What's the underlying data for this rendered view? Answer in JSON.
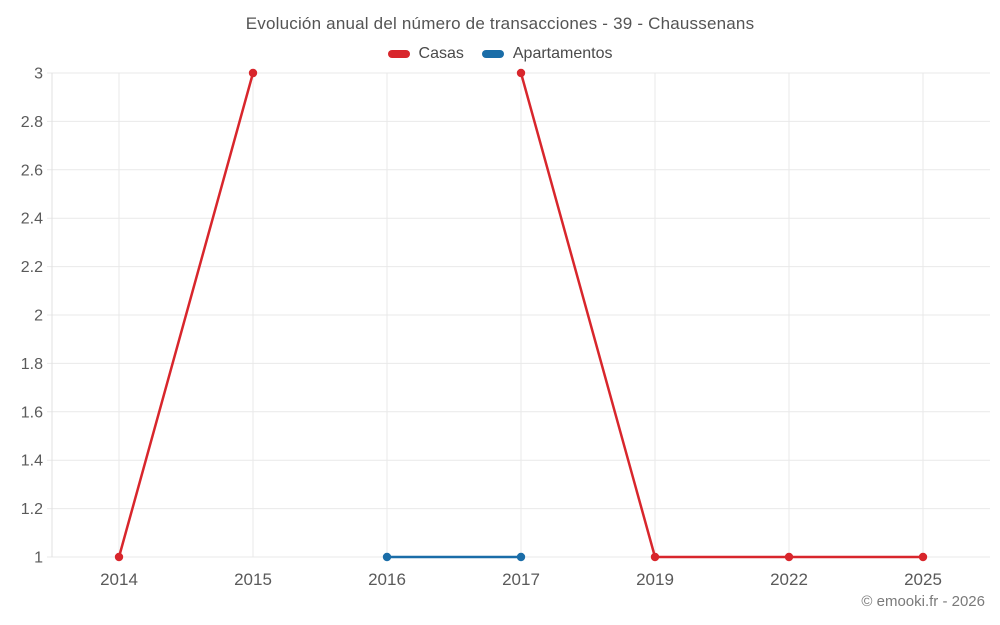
{
  "title": "Evolución anual del número de transacciones - 39 - Chaussenans",
  "copyright": "© emooki.fr - 2026",
  "legend": {
    "items": [
      {
        "label": "Casas",
        "color": "#d8262c"
      },
      {
        "label": "Apartamentos",
        "color": "#1a6da8"
      }
    ]
  },
  "chart_data": {
    "type": "line",
    "title": "Evolución anual del número de transacciones - 39 - Chaussenans",
    "categories": [
      "2014",
      "2015",
      "2016",
      "2017",
      "2019",
      "2022",
      "2025"
    ],
    "series": [
      {
        "name": "Casas",
        "color": "#d8262c",
        "values": [
          1,
          3,
          null,
          3,
          1,
          1,
          1
        ]
      },
      {
        "name": "Apartamentos",
        "color": "#1a6da8",
        "values": [
          null,
          null,
          1,
          1,
          null,
          null,
          null
        ]
      }
    ],
    "xlabel": "",
    "ylabel": "",
    "ylim": [
      1,
      3
    ],
    "yticks": [
      1,
      1.2,
      1.4,
      1.6,
      1.8,
      2,
      2.2,
      2.4,
      2.6,
      2.8,
      3
    ],
    "grid": true,
    "legend_position": "top"
  },
  "colors": {
    "background": "#ffffff",
    "grid": "#e9e9e9",
    "axis_line": "#e0e0e0",
    "axis_label": "#5a5a5a",
    "title_text": "#545454",
    "legend_text": "#4a4a4a",
    "copyright_text": "#7a7a7a"
  }
}
